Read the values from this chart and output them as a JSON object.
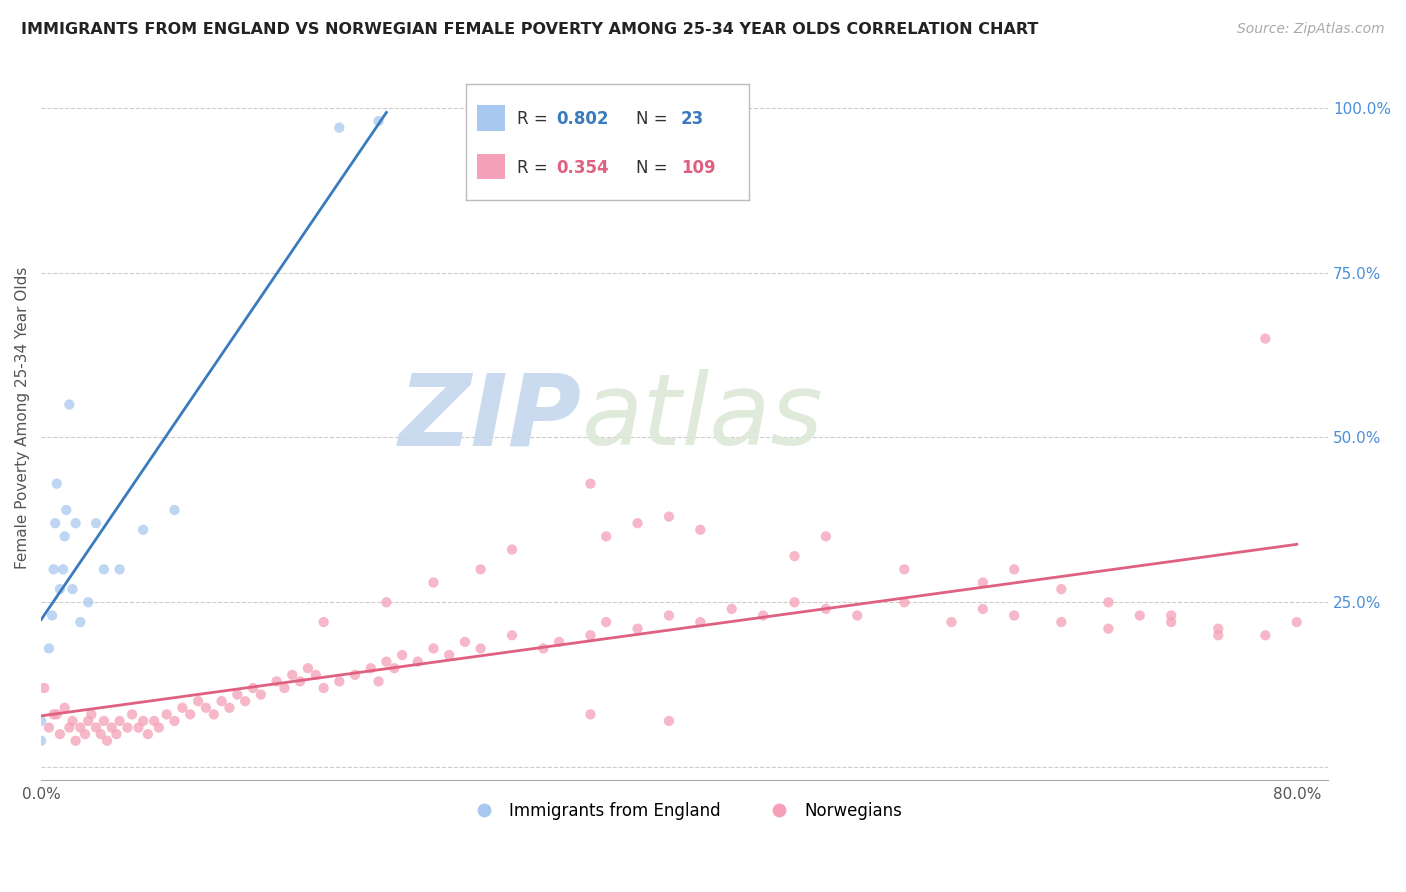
{
  "title": "IMMIGRANTS FROM ENGLAND VS NORWEGIAN FEMALE POVERTY AMONG 25-34 YEAR OLDS CORRELATION CHART",
  "source": "Source: ZipAtlas.com",
  "ylabel": "Female Poverty Among 25-34 Year Olds",
  "xlim": [
    0.0,
    0.82
  ],
  "ylim": [
    -0.02,
    1.08
  ],
  "y_ticks_right": [
    0.0,
    0.25,
    0.5,
    0.75,
    1.0
  ],
  "y_tick_labels_right": [
    "",
    "25.0%",
    "50.0%",
    "75.0%",
    "100.0%"
  ],
  "color_blue": "#a8c8f0",
  "color_pink": "#f4a0b8",
  "color_line_blue": "#3a7abf",
  "color_line_pink": "#e06080",
  "scatter_england_x": [
    0.0,
    0.0,
    0.005,
    0.007,
    0.008,
    0.009,
    0.01,
    0.012,
    0.014,
    0.015,
    0.016,
    0.018,
    0.02,
    0.022,
    0.025,
    0.03,
    0.035,
    0.04,
    0.05,
    0.065,
    0.085,
    0.19,
    0.215
  ],
  "scatter_england_y": [
    0.04,
    0.07,
    0.18,
    0.23,
    0.3,
    0.37,
    0.43,
    0.27,
    0.3,
    0.35,
    0.39,
    0.55,
    0.27,
    0.37,
    0.22,
    0.25,
    0.37,
    0.3,
    0.3,
    0.36,
    0.39,
    0.97,
    0.98
  ],
  "scatter_norway_x": [
    0.002,
    0.005,
    0.008,
    0.01,
    0.012,
    0.015,
    0.018,
    0.02,
    0.022,
    0.025,
    0.028,
    0.03,
    0.032,
    0.035,
    0.038,
    0.04,
    0.042,
    0.045,
    0.048,
    0.05,
    0.055,
    0.058,
    0.062,
    0.065,
    0.068,
    0.072,
    0.075,
    0.08,
    0.085,
    0.09,
    0.095,
    0.1,
    0.105,
    0.11,
    0.115,
    0.12,
    0.125,
    0.13,
    0.135,
    0.14,
    0.15,
    0.155,
    0.16,
    0.165,
    0.17,
    0.175,
    0.18,
    0.19,
    0.2,
    0.21,
    0.215,
    0.22,
    0.225,
    0.23,
    0.24,
    0.25,
    0.26,
    0.27,
    0.28,
    0.3,
    0.32,
    0.33,
    0.35,
    0.36,
    0.38,
    0.4,
    0.42,
    0.44,
    0.46,
    0.48,
    0.5,
    0.52,
    0.55,
    0.58,
    0.6,
    0.62,
    0.65,
    0.68,
    0.7,
    0.72,
    0.75,
    0.78,
    0.8,
    0.38,
    0.36,
    0.28,
    0.3,
    0.25,
    0.22,
    0.18,
    0.35,
    0.42,
    0.4,
    0.5,
    0.48,
    0.55,
    0.6,
    0.62,
    0.65,
    0.68,
    0.72,
    0.75,
    0.78,
    0.35,
    0.4
  ],
  "scatter_norway_y": [
    0.12,
    0.06,
    0.08,
    0.08,
    0.05,
    0.09,
    0.06,
    0.07,
    0.04,
    0.06,
    0.05,
    0.07,
    0.08,
    0.06,
    0.05,
    0.07,
    0.04,
    0.06,
    0.05,
    0.07,
    0.06,
    0.08,
    0.06,
    0.07,
    0.05,
    0.07,
    0.06,
    0.08,
    0.07,
    0.09,
    0.08,
    0.1,
    0.09,
    0.08,
    0.1,
    0.09,
    0.11,
    0.1,
    0.12,
    0.11,
    0.13,
    0.12,
    0.14,
    0.13,
    0.15,
    0.14,
    0.12,
    0.13,
    0.14,
    0.15,
    0.13,
    0.16,
    0.15,
    0.17,
    0.16,
    0.18,
    0.17,
    0.19,
    0.18,
    0.2,
    0.18,
    0.19,
    0.2,
    0.22,
    0.21,
    0.23,
    0.22,
    0.24,
    0.23,
    0.25,
    0.24,
    0.23,
    0.25,
    0.22,
    0.24,
    0.23,
    0.22,
    0.21,
    0.23,
    0.22,
    0.21,
    0.2,
    0.22,
    0.37,
    0.35,
    0.3,
    0.33,
    0.28,
    0.25,
    0.22,
    0.43,
    0.36,
    0.38,
    0.35,
    0.32,
    0.3,
    0.28,
    0.3,
    0.27,
    0.25,
    0.23,
    0.2,
    0.65,
    0.08,
    0.07
  ]
}
